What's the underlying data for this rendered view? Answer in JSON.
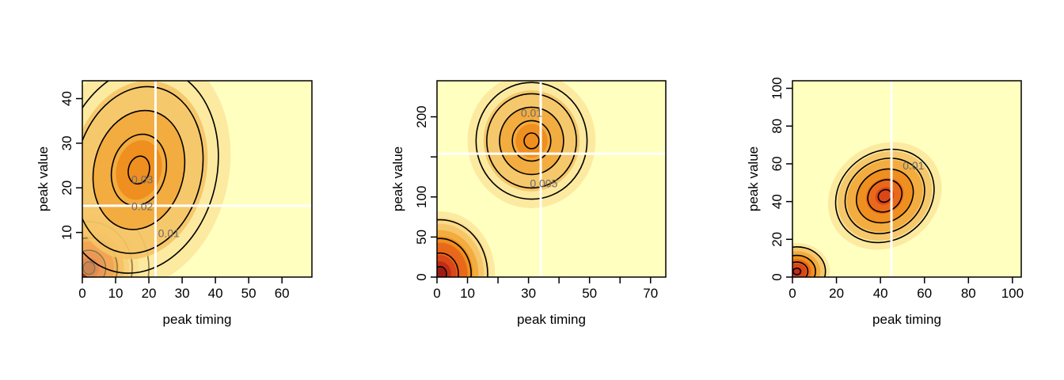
{
  "chart_data": [
    {
      "type": "heatmap",
      "title": "",
      "xlabel": "peak timing",
      "ylabel": "peak value",
      "xlim": [
        0,
        69
      ],
      "ylim": [
        0,
        44
      ],
      "xticks": [
        0,
        10,
        20,
        30,
        40,
        50,
        60
      ],
      "xtick_labels": [
        "0",
        "10",
        "20",
        "30",
        "40",
        "50",
        "60"
      ],
      "yticks": [
        10,
        20,
        30,
        40
      ],
      "ytick_labels": [
        "10",
        "20",
        "30",
        "40"
      ],
      "reference_lines": {
        "x": 22,
        "y": 16
      },
      "contour_labels": [
        {
          "text": "0.03",
          "x": 18,
          "y": 21
        },
        {
          "text": "0.02",
          "x": 18,
          "y": 15
        },
        {
          "text": "0.01",
          "x": 26,
          "y": 9
        }
      ],
      "density_modes": [
        {
          "x": 2,
          "y": 2,
          "peak_level": 10
        },
        {
          "x": 17,
          "y": 24,
          "peak_level": 4
        }
      ],
      "grid": false,
      "legend": "none"
    },
    {
      "type": "heatmap",
      "title": "",
      "xlabel": "peak timing",
      "ylabel": "peak value",
      "xlim": [
        0,
        75
      ],
      "ylim": [
        0,
        245
      ],
      "xticks": [
        0,
        10,
        20,
        30,
        40,
        50,
        60,
        70
      ],
      "xtick_labels": [
        "0",
        "10",
        "",
        "30",
        "",
        "50",
        "",
        "70"
      ],
      "yticks": [
        0,
        50,
        100,
        150,
        200
      ],
      "ytick_labels": [
        "0",
        "50",
        "100",
        "",
        "200"
      ],
      "reference_lines": {
        "x": 34,
        "y": 154
      },
      "contour_labels": [
        {
          "text": "0.01",
          "x": 31,
          "y": 200
        },
        {
          "text": "0.005",
          "x": 35,
          "y": 112
        }
      ],
      "density_modes": [
        {
          "x": 1,
          "y": 4,
          "peak_level": 10
        },
        {
          "x": 31,
          "y": 170,
          "peak_level": 4
        }
      ],
      "grid": false,
      "legend": "none"
    },
    {
      "type": "heatmap",
      "title": "",
      "xlabel": "peak timing",
      "ylabel": "peak value",
      "xlim": [
        0,
        104
      ],
      "ylim": [
        0,
        104
      ],
      "xticks": [
        0,
        20,
        40,
        60,
        80,
        100
      ],
      "xtick_labels": [
        "0",
        "20",
        "40",
        "60",
        "80",
        "100"
      ],
      "yticks": [
        0,
        20,
        40,
        60,
        80,
        100
      ],
      "ytick_labels": [
        "0",
        "20",
        "40",
        "60",
        "80",
        "100"
      ],
      "reference_lines": {
        "x": 45
      },
      "contour_labels": [
        {
          "text": "0.01",
          "x": 55,
          "y": 57
        }
      ],
      "density_modes": [
        {
          "x": 2,
          "y": 3,
          "peak_level": 7
        },
        {
          "x": 42,
          "y": 43,
          "peak_level": 6
        }
      ],
      "grid": false,
      "legend": "none"
    }
  ]
}
